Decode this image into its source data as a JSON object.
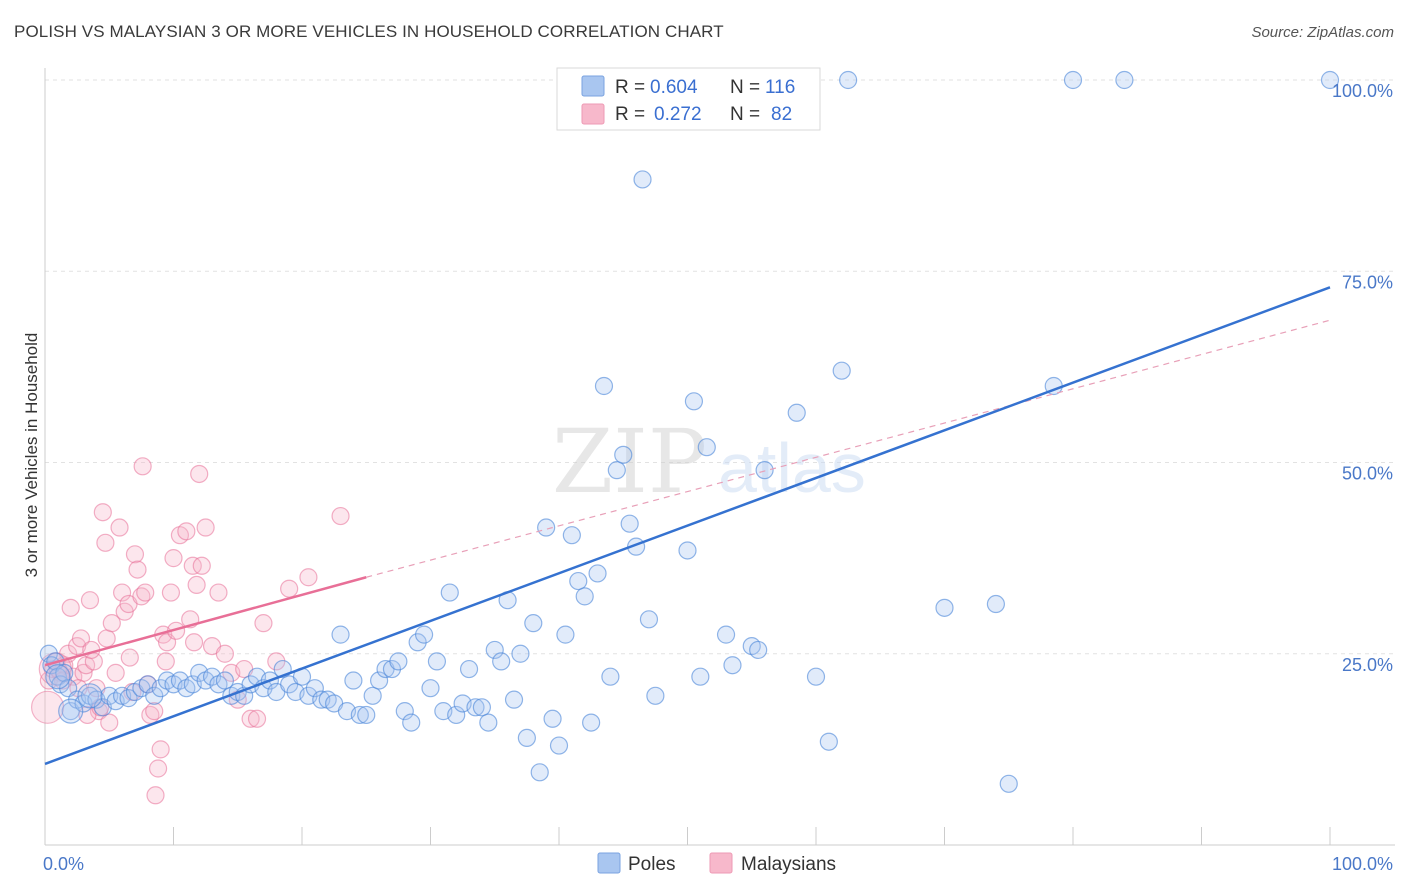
{
  "title": "POLISH VS MALAYSIAN 3 OR MORE VEHICLES IN HOUSEHOLD CORRELATION CHART",
  "source": "Source: ZipAtlas.com",
  "watermark": {
    "zip": "ZIP",
    "atlas": "atlas"
  },
  "legend_top": [
    {
      "r_label": "R =",
      "r_value": "0.604",
      "n_label": "N =",
      "n_value": "116",
      "color": "#a9c6f0"
    },
    {
      "r_label": "R =",
      "r_value": "0.272",
      "n_label": "N =",
      "n_value": "82",
      "color": "#f7b8cb"
    }
  ],
  "legend_bottom": [
    {
      "label": "Poles",
      "color": "#a9c6f0"
    },
    {
      "label": "Malaysians",
      "color": "#f7b8cb"
    }
  ],
  "chart_data": {
    "type": "scatter",
    "ylabel": "3 or more Vehicles in Household",
    "xlim": [
      0,
      100
    ],
    "ylim": [
      0,
      100
    ],
    "x_tick_labels": [
      "0.0%",
      "100.0%"
    ],
    "y_tick_labels": [
      "25.0%",
      "50.0%",
      "75.0%",
      "100.0%"
    ],
    "y_ticks": [
      25,
      50,
      75,
      100
    ],
    "grid": true,
    "series": [
      {
        "name": "Poles",
        "color": "#4a86d8",
        "fill": "#a9c6f0",
        "trend": {
          "x": [
            0,
            100
          ],
          "y": [
            10.6,
            72.9
          ]
        },
        "points": [
          [
            0.3,
            25.0
          ],
          [
            0.5,
            23.5
          ],
          [
            0.8,
            24.0
          ],
          [
            1.0,
            22.0
          ],
          [
            1.2,
            21.0
          ],
          [
            1.5,
            22.5
          ],
          [
            1.8,
            20.5
          ],
          [
            2.0,
            17.5
          ],
          [
            2.5,
            19.0
          ],
          [
            3.0,
            18.5
          ],
          [
            3.5,
            19.5
          ],
          [
            4.0,
            19.0
          ],
          [
            4.5,
            18.0
          ],
          [
            5.0,
            19.5
          ],
          [
            5.5,
            18.8
          ],
          [
            6.0,
            19.5
          ],
          [
            6.5,
            19.2
          ],
          [
            7.0,
            20.0
          ],
          [
            7.5,
            20.5
          ],
          [
            8.0,
            21.0
          ],
          [
            8.5,
            19.5
          ],
          [
            9.0,
            20.5
          ],
          [
            9.5,
            21.5
          ],
          [
            10.0,
            21.0
          ],
          [
            10.5,
            21.5
          ],
          [
            11.0,
            20.5
          ],
          [
            11.5,
            21.0
          ],
          [
            12.0,
            22.5
          ],
          [
            12.5,
            21.5
          ],
          [
            13.0,
            22.0
          ],
          [
            13.5,
            21.0
          ],
          [
            14.0,
            21.5
          ],
          [
            14.5,
            19.5
          ],
          [
            15.0,
            20.0
          ],
          [
            15.5,
            19.5
          ],
          [
            16.0,
            21.0
          ],
          [
            16.5,
            22.0
          ],
          [
            17.0,
            20.5
          ],
          [
            17.5,
            21.5
          ],
          [
            18.0,
            20.0
          ],
          [
            18.5,
            23.0
          ],
          [
            19.0,
            21.0
          ],
          [
            19.5,
            20.0
          ],
          [
            20.0,
            22.0
          ],
          [
            20.5,
            19.5
          ],
          [
            21.0,
            20.5
          ],
          [
            21.5,
            19.0
          ],
          [
            22.0,
            19.0
          ],
          [
            22.5,
            18.5
          ],
          [
            23.0,
            27.5
          ],
          [
            23.5,
            17.5
          ],
          [
            24.0,
            21.5
          ],
          [
            24.5,
            17.0
          ],
          [
            25.0,
            17.0
          ],
          [
            25.5,
            19.5
          ],
          [
            26.0,
            21.5
          ],
          [
            26.5,
            23.0
          ],
          [
            27.0,
            23.0
          ],
          [
            27.5,
            24.0
          ],
          [
            28.0,
            17.5
          ],
          [
            28.5,
            16.0
          ],
          [
            29.0,
            26.5
          ],
          [
            29.5,
            27.5
          ],
          [
            30.0,
            20.5
          ],
          [
            30.5,
            24.0
          ],
          [
            31.0,
            17.5
          ],
          [
            31.5,
            33.0
          ],
          [
            32.0,
            17.0
          ],
          [
            32.5,
            18.5
          ],
          [
            33.0,
            23.0
          ],
          [
            33.5,
            18.0
          ],
          [
            34.0,
            18.0
          ],
          [
            34.5,
            16.0
          ],
          [
            35.0,
            25.5
          ],
          [
            35.5,
            24.0
          ],
          [
            36.0,
            32.0
          ],
          [
            36.5,
            19.0
          ],
          [
            37.0,
            25.0
          ],
          [
            37.5,
            14.0
          ],
          [
            38.0,
            29.0
          ],
          [
            38.5,
            9.5
          ],
          [
            39.0,
            41.5
          ],
          [
            39.5,
            16.5
          ],
          [
            40.0,
            13.0
          ],
          [
            40.5,
            27.5
          ],
          [
            41.0,
            40.5
          ],
          [
            41.5,
            34.5
          ],
          [
            42.0,
            32.5
          ],
          [
            42.5,
            16.0
          ],
          [
            43.0,
            35.5
          ],
          [
            43.5,
            60.0
          ],
          [
            44.0,
            22.0
          ],
          [
            44.5,
            49.0
          ],
          [
            45.0,
            51.0
          ],
          [
            45.5,
            42.0
          ],
          [
            46.0,
            39.0
          ],
          [
            46.5,
            87.0
          ],
          [
            47.0,
            29.5
          ],
          [
            47.5,
            19.5
          ],
          [
            50.0,
            38.5
          ],
          [
            50.5,
            58.0
          ],
          [
            51.0,
            22.0
          ],
          [
            51.5,
            52.0
          ],
          [
            53.0,
            27.5
          ],
          [
            53.5,
            23.5
          ],
          [
            55.0,
            26.0
          ],
          [
            55.5,
            25.5
          ],
          [
            56.0,
            49.0
          ],
          [
            58.5,
            56.5
          ],
          [
            60.0,
            22.0
          ],
          [
            61.0,
            13.5
          ],
          [
            62.0,
            62.0
          ],
          [
            70.0,
            31.0
          ],
          [
            74.0,
            31.5
          ],
          [
            75.0,
            8.0
          ],
          [
            78.5,
            60.0
          ]
        ],
        "big_points": [
          [
            1.0,
            22.0
          ],
          [
            2.0,
            17.5
          ],
          [
            3.5,
            19.5
          ]
        ],
        "top_points": [
          [
            47.5,
            100
          ],
          [
            62.5,
            100
          ],
          [
            80,
            100
          ],
          [
            84,
            100
          ],
          [
            100,
            100
          ]
        ]
      },
      {
        "name": "Malaysians",
        "color": "#e86f97",
        "fill": "#f7b8cb",
        "trend": {
          "x": [
            0,
            25
          ],
          "y": [
            23.5,
            35.0
          ]
        },
        "trend_dashed": {
          "x": [
            25,
            100
          ],
          "y": [
            35.0,
            68.6
          ]
        },
        "points": [
          [
            0.3,
            21.5
          ],
          [
            0.6,
            23.0
          ],
          [
            0.9,
            24.0
          ],
          [
            1.2,
            22.5
          ],
          [
            1.5,
            23.5
          ],
          [
            1.8,
            25.0
          ],
          [
            2.0,
            31.0
          ],
          [
            2.2,
            22.0
          ],
          [
            2.5,
            26.0
          ],
          [
            2.8,
            27.0
          ],
          [
            3.0,
            22.5
          ],
          [
            3.2,
            23.5
          ],
          [
            3.5,
            32.0
          ],
          [
            3.8,
            24.0
          ],
          [
            4.0,
            20.5
          ],
          [
            4.2,
            17.5
          ],
          [
            4.5,
            43.5
          ],
          [
            4.7,
            39.5
          ],
          [
            4.8,
            27.0
          ],
          [
            5.0,
            16.0
          ],
          [
            5.2,
            29.0
          ],
          [
            5.5,
            22.5
          ],
          [
            5.8,
            41.5
          ],
          [
            6.0,
            33.0
          ],
          [
            6.2,
            30.5
          ],
          [
            6.5,
            31.5
          ],
          [
            6.8,
            20.0
          ],
          [
            7.0,
            38.0
          ],
          [
            7.2,
            36.0
          ],
          [
            7.5,
            32.5
          ],
          [
            7.8,
            33.0
          ],
          [
            8.0,
            21.0
          ],
          [
            8.2,
            17.0
          ],
          [
            8.5,
            17.5
          ],
          [
            8.8,
            10.0
          ],
          [
            9.0,
            12.5
          ],
          [
            9.2,
            27.5
          ],
          [
            9.5,
            26.5
          ],
          [
            9.8,
            33.0
          ],
          [
            10.0,
            37.5
          ],
          [
            10.5,
            40.5
          ],
          [
            11.0,
            41.0
          ],
          [
            11.3,
            29.5
          ],
          [
            11.5,
            36.5
          ],
          [
            11.8,
            34.0
          ],
          [
            12.0,
            48.5
          ],
          [
            12.5,
            41.5
          ],
          [
            13.0,
            26.0
          ],
          [
            13.5,
            33.0
          ],
          [
            14.0,
            25.0
          ],
          [
            14.5,
            22.5
          ],
          [
            15.0,
            19.0
          ],
          [
            15.5,
            23.0
          ],
          [
            16.0,
            16.5
          ],
          [
            16.5,
            16.5
          ],
          [
            17.0,
            29.0
          ],
          [
            18.0,
            24.0
          ],
          [
            19.0,
            33.5
          ],
          [
            20.5,
            35.0
          ],
          [
            23.0,
            43.0
          ],
          [
            1.0,
            23.0
          ],
          [
            1.4,
            21.5
          ],
          [
            2.6,
            20.5
          ],
          [
            3.3,
            17.0
          ],
          [
            3.6,
            25.5
          ],
          [
            4.3,
            18.0
          ],
          [
            6.6,
            24.5
          ],
          [
            7.6,
            49.5
          ],
          [
            8.6,
            6.5
          ],
          [
            9.4,
            24.0
          ],
          [
            10.2,
            28.0
          ],
          [
            11.6,
            26.5
          ],
          [
            12.2,
            36.5
          ]
        ],
        "big_points": [
          [
            0.2,
            18.0
          ],
          [
            0.8,
            23.0
          ]
        ]
      }
    ]
  }
}
